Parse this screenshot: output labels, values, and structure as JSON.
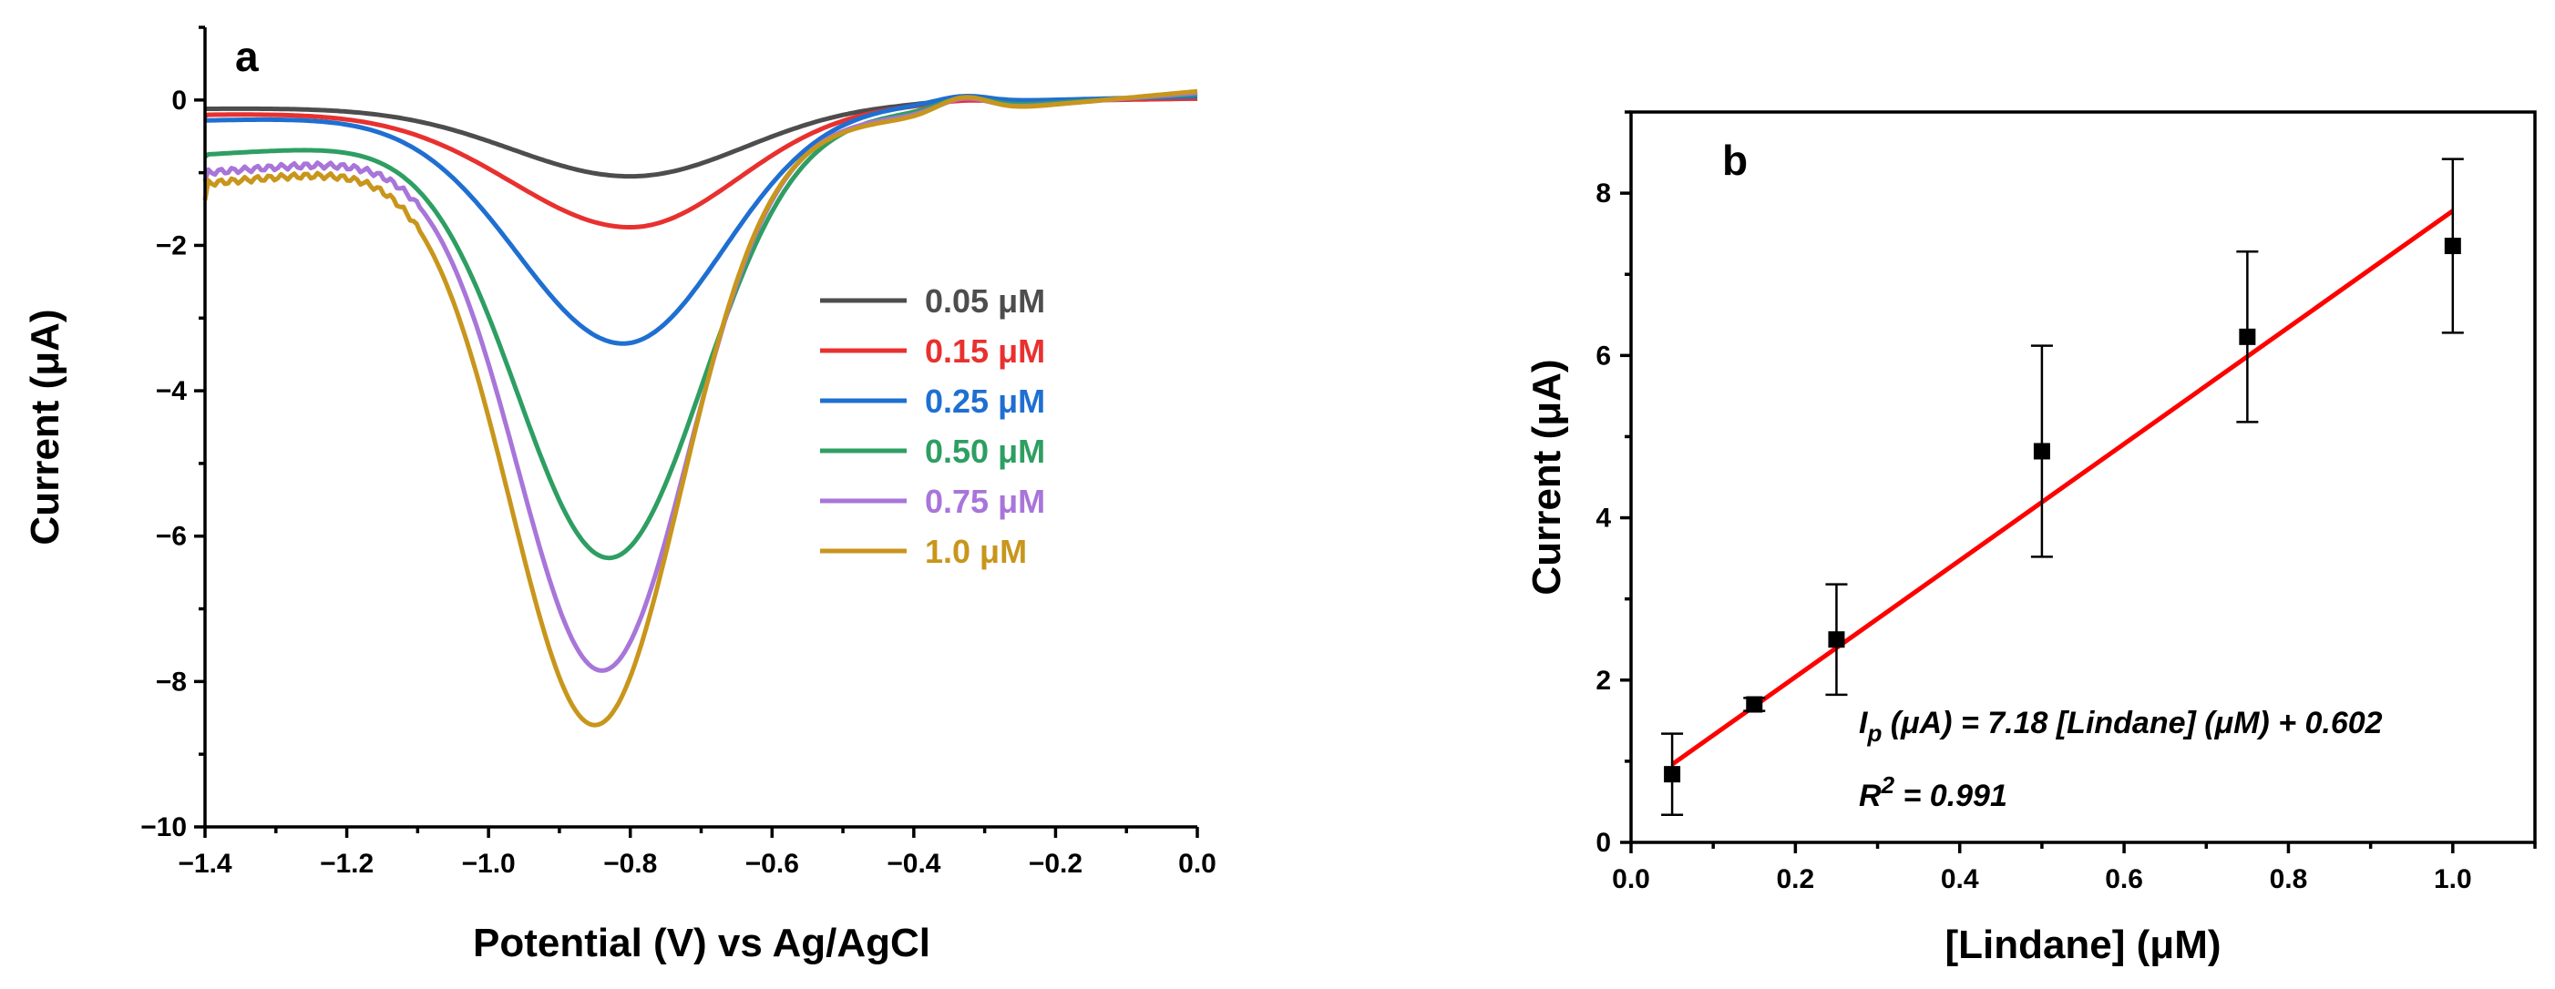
{
  "chart_data": [
    {
      "type": "line",
      "panel_label": "a",
      "title": "",
      "xlabel": "Potential (V) vs Ag/AgCl",
      "ylabel": "Current (μA)",
      "xlim": [
        -1.4,
        0.0
      ],
      "ylim": [
        -10,
        1
      ],
      "x_ticks": [
        "−1.4",
        "−1.2",
        "−1.0",
        "−0.8",
        "−0.6",
        "−0.4",
        "−0.2",
        "0.0"
      ],
      "y_ticks": [
        "−10",
        "−8",
        "−6",
        "−4",
        "−2",
        "0"
      ],
      "grid": false,
      "legend_position": "center-right",
      "series": [
        {
          "name": "0.05 μM",
          "color": "#4d4d4d",
          "start": -0.12,
          "peak_x": -0.8,
          "peak_y": -1.05,
          "width_left": 0.17,
          "width_right": 0.16,
          "left_end": -0.12,
          "right_end": 0.02
        },
        {
          "name": "0.15 μM",
          "color": "#e8312f",
          "start": -0.22,
          "peak_x": -0.8,
          "peak_y": -1.75,
          "width_left": 0.17,
          "width_right": 0.15,
          "left_end": -0.2,
          "right_end": 0.02
        },
        {
          "name": "0.25 μM",
          "color": "#1f6fd1",
          "start": -0.28,
          "peak_x": -0.81,
          "peak_y": -3.35,
          "width_left": 0.15,
          "width_right": 0.14,
          "left_end": -0.28,
          "right_end": 0.05
        },
        {
          "name": "0.50 μM",
          "color": "#2e9e62",
          "start": -0.78,
          "peak_x": -0.83,
          "peak_y": -6.3,
          "width_left": 0.13,
          "width_right": 0.13,
          "left_end": -0.75,
          "right_end": 0.08
        },
        {
          "name": "0.75 μM",
          "color": "#a875d9",
          "start": -1.12,
          "peak_x": -0.84,
          "peak_y": -7.85,
          "width_left": 0.12,
          "width_right": 0.12,
          "left_end": -1.0,
          "right_end": 0.1
        },
        {
          "name": "1.0 μM",
          "color": "#c8961c",
          "start": -1.38,
          "peak_x": -0.85,
          "peak_y": -8.6,
          "width_left": 0.12,
          "width_right": 0.12,
          "left_end": -1.15,
          "right_end": 0.12
        }
      ]
    },
    {
      "type": "scatter",
      "panel_label": "b",
      "title": "",
      "xlabel": "[Lindane] (μM)",
      "ylabel": "Current (μA)",
      "xlim": [
        0.0,
        1.1
      ],
      "ylim": [
        0,
        9
      ],
      "x_ticks": [
        "0.0",
        "0.2",
        "0.4",
        "0.6",
        "0.8",
        "1.0"
      ],
      "y_ticks": [
        "0",
        "2",
        "4",
        "6",
        "8"
      ],
      "grid": false,
      "points": {
        "x": [
          0.05,
          0.15,
          0.25,
          0.5,
          0.75,
          1.0
        ],
        "y": [
          0.84,
          1.7,
          2.5,
          4.82,
          6.23,
          7.35
        ],
        "err": [
          0.5,
          0.08,
          0.68,
          1.3,
          1.05,
          1.07
        ],
        "color": "#000000"
      },
      "fit": {
        "slope": 7.18,
        "intercept": 0.602,
        "x_range": [
          0.05,
          1.0
        ],
        "color": "#ff0000"
      },
      "equation": {
        "lhs_main": "I",
        "lhs_sub": "p",
        "rhs": " (μA) = 7.18 [Lindane] (μM) + 0.602",
        "r2_main": "R",
        "r2_sup": "2",
        "r2_rhs": " = 0.991"
      }
    }
  ]
}
